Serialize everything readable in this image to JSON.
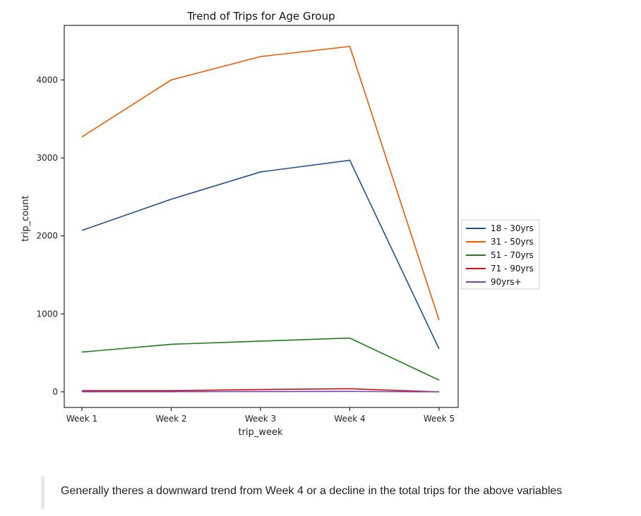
{
  "chart_data": {
    "type": "line",
    "title": "Trend of Trips for Age Group",
    "xlabel": "trip_week",
    "ylabel": "trip_count",
    "categories": [
      "Week 1",
      "Week 2",
      "Week 3",
      "Week 4",
      "Week 5"
    ],
    "ylim": [
      -200,
      4700
    ],
    "yticks": [
      0,
      1000,
      2000,
      3000,
      4000
    ],
    "grid": false,
    "legend_position": "center-right outside",
    "series": [
      {
        "name": "18 - 30yrs",
        "color": "#1f4e8c",
        "values": [
          2070,
          2470,
          2820,
          2970,
          550
        ]
      },
      {
        "name": "31 - 50yrs",
        "color": "#f05a00",
        "values": [
          3270,
          4000,
          4300,
          4430,
          920
        ]
      },
      {
        "name": "51 - 70yrs",
        "color": "#1e7d1e",
        "values": [
          510,
          610,
          650,
          690,
          150
        ]
      },
      {
        "name": "71 - 90yrs",
        "color": "#c81414",
        "values": [
          15,
          15,
          30,
          40,
          0
        ]
      },
      {
        "name": "90yrs+",
        "color": "#7b3fb3",
        "values": [
          2,
          2,
          4,
          5,
          0
        ]
      }
    ]
  },
  "note": "Generally theres a downward trend from Week 4 or a decline in the total trips for the above variables"
}
